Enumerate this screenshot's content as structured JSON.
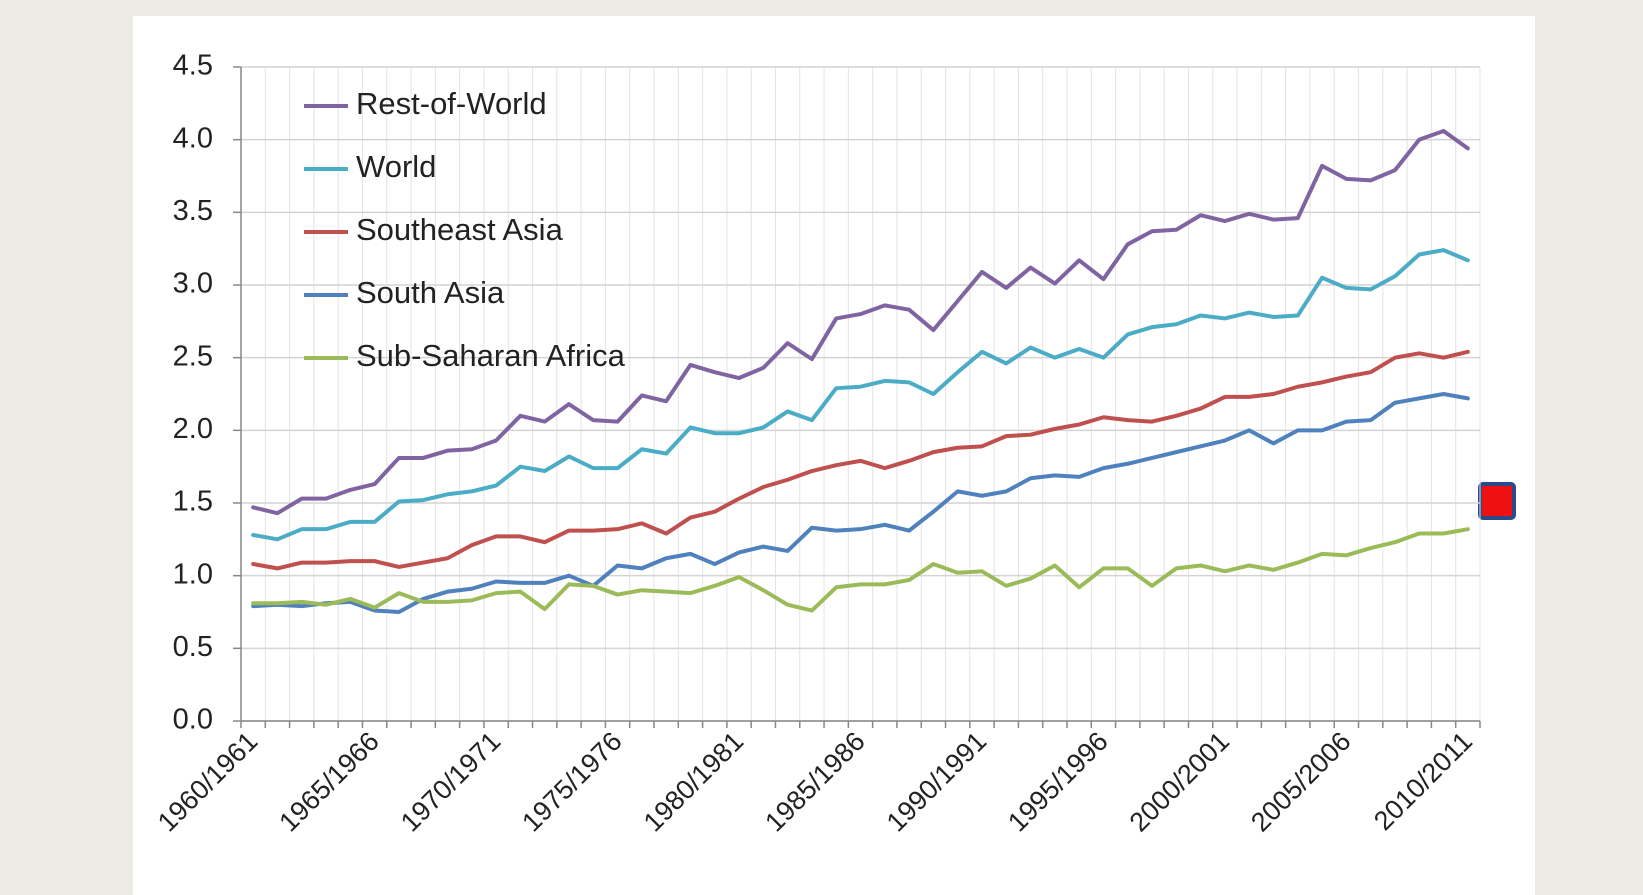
{
  "chart_data": {
    "type": "line",
    "categories": [
      "1960/1961",
      null,
      null,
      null,
      null,
      "1965/1966",
      null,
      null,
      null,
      null,
      "1970/1971",
      null,
      null,
      null,
      null,
      "1975/1976",
      null,
      null,
      null,
      null,
      "1980/1981",
      null,
      null,
      null,
      null,
      "1985/1986",
      null,
      null,
      null,
      null,
      "1990/1991",
      null,
      null,
      null,
      null,
      "1995/1996",
      null,
      null,
      null,
      null,
      "2000/2001",
      null,
      null,
      null,
      null,
      "2005/2006",
      null,
      null,
      null,
      null,
      "2010/2011"
    ],
    "series": [
      {
        "name": "Rest-of-World",
        "color": "#8064a2",
        "values": [
          1.47,
          1.43,
          1.53,
          1.53,
          1.59,
          1.63,
          1.81,
          1.81,
          1.86,
          1.87,
          1.93,
          2.1,
          2.06,
          2.18,
          2.07,
          2.06,
          2.24,
          2.2,
          2.45,
          2.4,
          2.36,
          2.43,
          2.6,
          2.49,
          2.77,
          2.8,
          2.86,
          2.83,
          2.69,
          2.89,
          3.09,
          2.98,
          3.12,
          3.01,
          3.17,
          3.04,
          3.28,
          3.37,
          3.38,
          3.48,
          3.44,
          3.49,
          3.45,
          3.46,
          3.82,
          3.73,
          3.72,
          3.79,
          4.0,
          4.06,
          3.94
        ]
      },
      {
        "name": "World",
        "color": "#4bacc6",
        "values": [
          1.28,
          1.25,
          1.32,
          1.32,
          1.37,
          1.37,
          1.51,
          1.52,
          1.56,
          1.58,
          1.62,
          1.75,
          1.72,
          1.82,
          1.74,
          1.74,
          1.87,
          1.84,
          2.02,
          1.98,
          1.98,
          2.02,
          2.13,
          2.07,
          2.29,
          2.3,
          2.34,
          2.33,
          2.25,
          2.4,
          2.54,
          2.46,
          2.57,
          2.5,
          2.56,
          2.5,
          2.66,
          2.71,
          2.73,
          2.79,
          2.77,
          2.81,
          2.78,
          2.79,
          3.05,
          2.98,
          2.97,
          3.06,
          3.21,
          3.24,
          3.17
        ]
      },
      {
        "name": "Southeast Asia",
        "color": "#c0504d",
        "values": [
          1.08,
          1.05,
          1.09,
          1.09,
          1.1,
          1.1,
          1.06,
          1.09,
          1.12,
          1.21,
          1.27,
          1.27,
          1.23,
          1.31,
          1.31,
          1.32,
          1.36,
          1.29,
          1.4,
          1.44,
          1.53,
          1.61,
          1.66,
          1.72,
          1.76,
          1.79,
          1.74,
          1.79,
          1.85,
          1.88,
          1.89,
          1.96,
          1.97,
          2.01,
          2.04,
          2.09,
          2.07,
          2.06,
          2.1,
          2.15,
          2.23,
          2.23,
          2.25,
          2.3,
          2.33,
          2.37,
          2.4,
          2.5,
          2.53,
          2.5,
          2.54
        ]
      },
      {
        "name": "South Asia",
        "color": "#4f81bd",
        "values": [
          0.79,
          0.8,
          0.79,
          0.81,
          0.82,
          0.76,
          0.75,
          0.84,
          0.89,
          0.91,
          0.96,
          0.95,
          0.95,
          1.0,
          0.93,
          1.07,
          1.05,
          1.12,
          1.15,
          1.08,
          1.16,
          1.2,
          1.17,
          1.33,
          1.31,
          1.32,
          1.35,
          1.31,
          1.44,
          1.58,
          1.55,
          1.58,
          1.67,
          1.69,
          1.68,
          1.74,
          1.77,
          1.81,
          1.85,
          1.89,
          1.93,
          2.0,
          1.91,
          2.0,
          2.0,
          2.06,
          2.07,
          2.19,
          2.22,
          2.25,
          2.22
        ]
      },
      {
        "name": "Sub-Saharan Africa",
        "color": "#9bbb59",
        "values": [
          0.81,
          0.81,
          0.82,
          0.8,
          0.84,
          0.78,
          0.88,
          0.82,
          0.82,
          0.83,
          0.88,
          0.89,
          0.77,
          0.94,
          0.93,
          0.87,
          0.9,
          0.89,
          0.88,
          0.93,
          0.99,
          0.9,
          0.8,
          0.76,
          0.92,
          0.94,
          0.94,
          0.97,
          1.08,
          1.02,
          1.03,
          0.93,
          0.98,
          1.07,
          0.92,
          1.05,
          1.05,
          0.93,
          1.05,
          1.07,
          1.03,
          1.07,
          1.04,
          1.09,
          1.15,
          1.14,
          1.19,
          1.23,
          1.29,
          1.29,
          1.32
        ]
      }
    ],
    "ylim": [
      0,
      4.5
    ],
    "yticks": [
      {
        "value": 0,
        "label": "0.0"
      },
      0.5,
      {
        "value": 1,
        "label": "1.0"
      },
      1.5,
      {
        "value": 2,
        "label": "2.0"
      },
      2.5,
      {
        "value": 3,
        "label": "3.0"
      },
      3.5,
      {
        "value": 4,
        "label": "4.0"
      },
      4.5
    ],
    "grid": true,
    "legend": "upper left"
  }
}
